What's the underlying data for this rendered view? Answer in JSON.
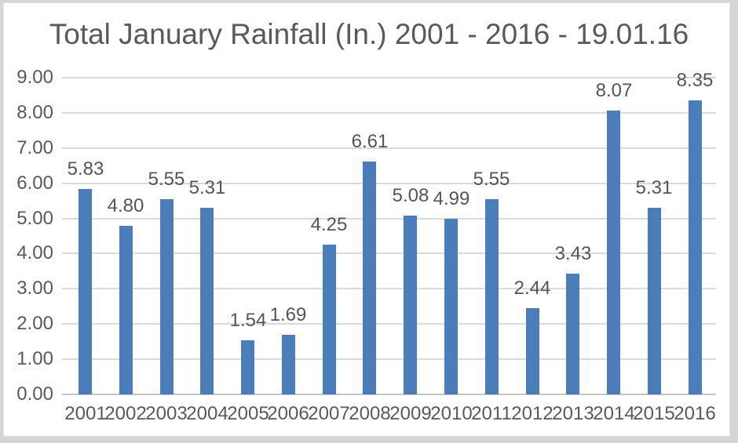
{
  "chart_data": {
    "type": "bar",
    "title": "Total January Rainfall (In.) 2001 - 2016 - 19.01.16",
    "xlabel": "",
    "ylabel": "",
    "categories": [
      "2001",
      "2002",
      "2003",
      "2004",
      "2005",
      "2006",
      "2007",
      "2008",
      "2009",
      "2010",
      "2011",
      "2012",
      "2013",
      "2014",
      "2015",
      "2016"
    ],
    "values": [
      5.83,
      4.8,
      5.55,
      5.31,
      1.54,
      1.69,
      4.25,
      6.61,
      5.08,
      4.99,
      5.55,
      2.44,
      3.43,
      8.07,
      5.31,
      8.35
    ],
    "data_labels": [
      "5.83",
      "4.80",
      "5.55",
      "5.31",
      "1.54",
      "1.69",
      "4.25",
      "6.61",
      "5.08",
      "4.99",
      "5.55",
      "2.44",
      "3.43",
      "8.07",
      "5.31",
      "8.35"
    ],
    "ylim": [
      0,
      9
    ],
    "y_tick_step": 1,
    "y_tick_labels": [
      "0.00",
      "1.00",
      "2.00",
      "3.00",
      "4.00",
      "5.00",
      "6.00",
      "7.00",
      "8.00",
      "9.00"
    ],
    "grid": true,
    "legend": "none",
    "colors": {
      "bar": "#4b7db9",
      "gridline": "#dadada",
      "axis_line": "#c4c4c4",
      "title_text": "#595959",
      "tick_text": "#595959",
      "value_label_text": "#555555",
      "chart_background": "#ffffff",
      "frame_background": "#d6d4d4"
    }
  }
}
